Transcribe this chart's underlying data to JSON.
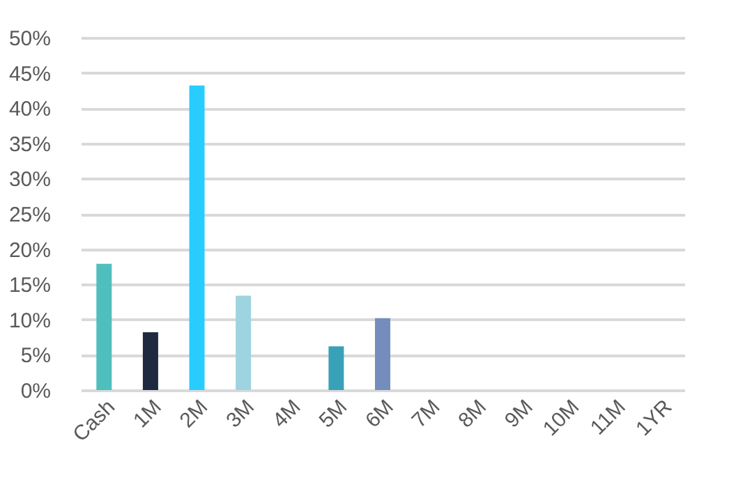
{
  "chart_data": {
    "type": "bar",
    "categories": [
      "Cash",
      "1M",
      "2M",
      "3M",
      "4M",
      "5M",
      "6M",
      "7M",
      "8M",
      "9M",
      "10M",
      "11M",
      "1YR"
    ],
    "values": [
      17.9,
      8.2,
      43.2,
      13.4,
      0,
      6.2,
      10.2,
      0,
      0,
      0,
      0,
      0,
      0
    ],
    "colors": [
      "#4fbfbd",
      "#1f2a40",
      "#29ccff",
      "#9dd4e0",
      "#888888",
      "#38a1b8",
      "#758dbd",
      "#888888",
      "#888888",
      "#888888",
      "#888888",
      "#888888",
      "#888888"
    ],
    "ylim": [
      0,
      50
    ],
    "yticks": [
      {
        "value": 0,
        "label": "0%"
      },
      {
        "value": 5,
        "label": "5%"
      },
      {
        "value": 10,
        "label": "10%"
      },
      {
        "value": 15,
        "label": "15%"
      },
      {
        "value": 20,
        "label": "20%"
      },
      {
        "value": 25,
        "label": "25%"
      },
      {
        "value": 30,
        "label": "30%"
      },
      {
        "value": 35,
        "label": "35%"
      },
      {
        "value": 40,
        "label": "40%"
      },
      {
        "value": 45,
        "label": "45%"
      },
      {
        "value": 50,
        "label": "50%"
      }
    ],
    "grid": "y"
  }
}
